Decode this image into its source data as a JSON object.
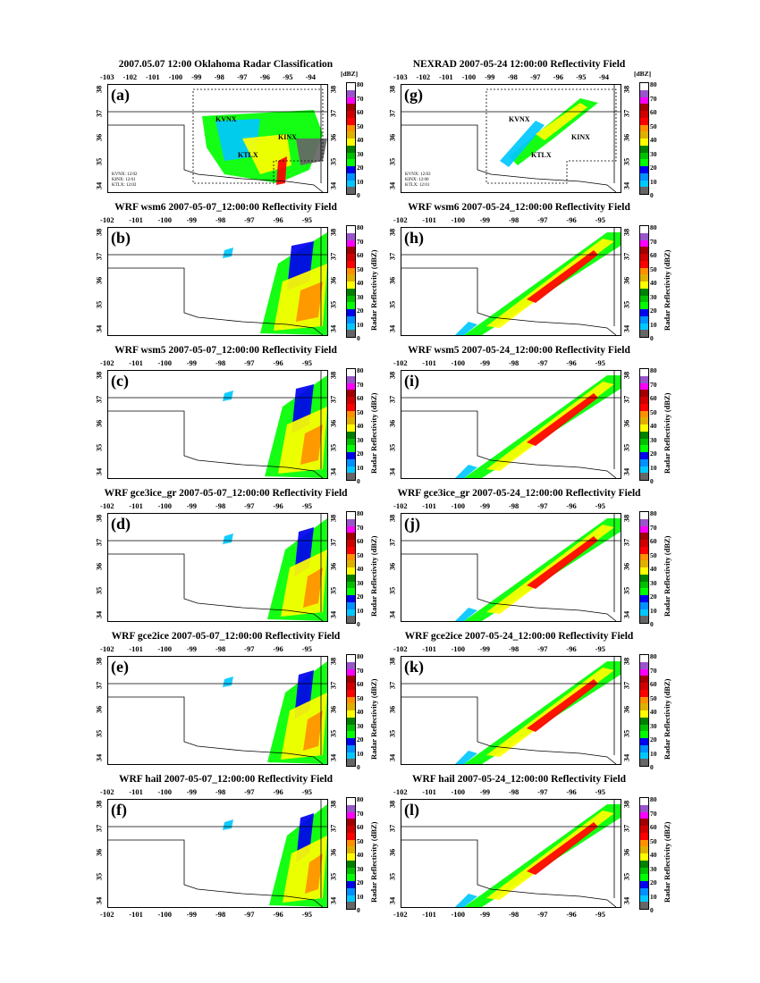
{
  "colorbar": {
    "colors": [
      "#666666",
      "#00c8ff",
      "#0090ff",
      "#0000f0",
      "#00ff00",
      "#00c000",
      "#008000",
      "#ffff00",
      "#e0b000",
      "#ff9000",
      "#ff0000",
      "#d00000",
      "#a00000",
      "#ff00ff",
      "#9955c9",
      "#ffffff"
    ],
    "ticks": [
      "80",
      "70",
      "60",
      "50",
      "40",
      "30",
      "20",
      "10",
      "0"
    ],
    "unit_obs": "[dBZ]",
    "label_model": "Radar Reflectivity (dBZ)"
  },
  "panels": [
    {
      "id": "a",
      "title": "2007.05.07  12:00  Oklahoma Radar Classification",
      "case": "may07",
      "obs": true,
      "xticks": [
        "-103",
        "-102",
        "-101",
        "-100",
        "-99",
        "-98",
        "-97",
        "-96",
        "-95",
        "-94"
      ],
      "yticks": [
        "38",
        "37",
        "36",
        "35",
        "34"
      ],
      "stations": [
        "KVNX",
        "KINX",
        "KTLX"
      ],
      "times": [
        "KVNX: 12:02",
        "KINX: 12:01",
        "KTLX: 12:02"
      ]
    },
    {
      "id": "g",
      "title": "NEXRAD 2007-05-24 12:00:00 Reflectivity Field",
      "case": "may24",
      "obs": true,
      "xticks": [
        "-103",
        "-102",
        "-101",
        "-100",
        "-99",
        "-98",
        "-97",
        "-96",
        "-95",
        "-94"
      ],
      "yticks": [
        "38",
        "37",
        "36",
        "35",
        "34"
      ],
      "stations": [
        "KVNX",
        "KINX",
        "KTLX"
      ],
      "times": [
        "KVNX: 12:03",
        "KINX: 12:00",
        "KTLX: 12:01"
      ]
    },
    {
      "id": "b",
      "title": "WRF wsm6 2007-05-07_12:00:00 Reflectivity Field",
      "case": "may07",
      "xticks": [
        "-102",
        "-101",
        "-100",
        "-99",
        "-98",
        "-97",
        "-96",
        "-95"
      ],
      "yticks": [
        "38",
        "37",
        "36",
        "35",
        "34"
      ]
    },
    {
      "id": "h",
      "title": "WRF wsm6 2007-05-24_12:00:00 Reflectivity Field",
      "case": "may24",
      "xticks": [
        "-102",
        "-101",
        "-100",
        "-99",
        "-98",
        "-97",
        "-96",
        "-95"
      ],
      "yticks": [
        "38",
        "37",
        "36",
        "35",
        "34"
      ]
    },
    {
      "id": "c",
      "title": "WRF wsm5 2007-05-07_12:00:00 Reflectivity Field",
      "case": "may07",
      "xticks": [
        "-102",
        "-101",
        "-100",
        "-99",
        "-98",
        "-97",
        "-96",
        "-95"
      ],
      "yticks": [
        "38",
        "37",
        "36",
        "35",
        "34"
      ]
    },
    {
      "id": "i",
      "title": "WRF wsm5 2007-05-24_12:00:00 Reflectivity Field",
      "case": "may24",
      "xticks": [
        "-102",
        "-101",
        "-100",
        "-99",
        "-98",
        "-97",
        "-96",
        "-95"
      ],
      "yticks": [
        "38",
        "37",
        "36",
        "35",
        "34"
      ]
    },
    {
      "id": "d",
      "title": "WRF gce3ice_gr 2007-05-07_12:00:00 Reflectivity Field",
      "case": "may07",
      "xticks": [
        "-102",
        "-101",
        "-100",
        "-99",
        "-98",
        "-97",
        "-96",
        "-95"
      ],
      "yticks": [
        "38",
        "37",
        "36",
        "35",
        "34"
      ]
    },
    {
      "id": "j",
      "title": "WRF gce3ice_gr 2007-05-24_12:00:00 Reflectivity Field",
      "case": "may24",
      "xticks": [
        "-102",
        "-101",
        "-100",
        "-99",
        "-98",
        "-97",
        "-96",
        "-95"
      ],
      "yticks": [
        "38",
        "37",
        "36",
        "35",
        "34"
      ]
    },
    {
      "id": "e",
      "title": "WRF gce2ice 2007-05-07_12:00:00 Reflectivity Field",
      "case": "may07",
      "xticks": [
        "-102",
        "-101",
        "-100",
        "-99",
        "-98",
        "-97",
        "-96",
        "-95"
      ],
      "yticks": [
        "38",
        "37",
        "36",
        "35",
        "34"
      ]
    },
    {
      "id": "k",
      "title": "WRF gce2ice 2007-05-24_12:00:00 Reflectivity Field",
      "case": "may24",
      "xticks": [
        "-102",
        "-101",
        "-100",
        "-99",
        "-98",
        "-97",
        "-96",
        "-95"
      ],
      "yticks": [
        "38",
        "37",
        "36",
        "35",
        "34"
      ]
    },
    {
      "id": "f",
      "title": "WRF hail 2007-05-07_12:00:00 Reflectivity Field",
      "case": "may07",
      "xticks": [
        "-102",
        "-101",
        "-100",
        "-99",
        "-98",
        "-97",
        "-96",
        "-95"
      ],
      "yticks": [
        "38",
        "37",
        "36",
        "35",
        "34"
      ]
    },
    {
      "id": "l",
      "title": "WRF hail 2007-05-24_12:00:00 Reflectivity Field",
      "case": "may24",
      "xticks": [
        "-102",
        "-101",
        "-100",
        "-99",
        "-98",
        "-97",
        "-96",
        "-95"
      ],
      "yticks": [
        "38",
        "37",
        "36",
        "35",
        "34"
      ]
    }
  ]
}
